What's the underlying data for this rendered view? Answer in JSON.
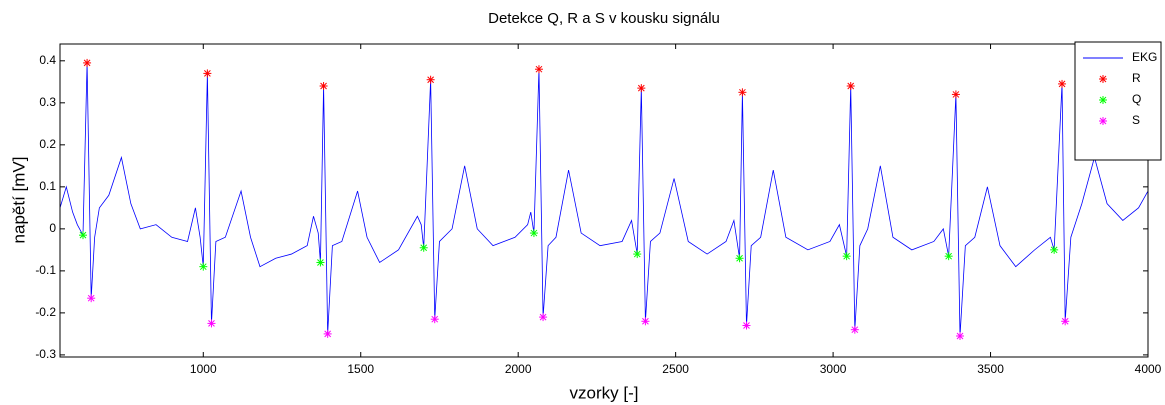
{
  "chart_data": {
    "type": "line",
    "title": "Detekce Q, R a S v kousku signálu",
    "x_label": "vzorky [-]",
    "y_label": "napětí [mV]",
    "xlim": [
      545,
      4000
    ],
    "ylim": [
      -0.305,
      0.44
    ],
    "xticks": [
      1000,
      1500,
      2000,
      2500,
      3000,
      3500,
      4000
    ],
    "yticks": [
      -0.3,
      -0.2,
      -0.1,
      0,
      0.1,
      0.2,
      0.3,
      0.4
    ],
    "grid": false,
    "legend": "northeast",
    "series": [
      {
        "name": "EKG",
        "color": "#0000ff",
        "marker": "none",
        "x": [
          545,
          565,
          585,
          600,
          618,
          631,
          644,
          655,
          670,
          700,
          740,
          770,
          800,
          850,
          900,
          950,
          975,
          990,
          1000,
          1013,
          1026,
          1040,
          1070,
          1120,
          1150,
          1180,
          1230,
          1280,
          1330,
          1350,
          1365,
          1372,
          1382,
          1395,
          1410,
          1440,
          1490,
          1520,
          1560,
          1620,
          1680,
          1692,
          1700,
          1722,
          1735,
          1750,
          1790,
          1830,
          1870,
          1920,
          1990,
          2030,
          2040,
          2050,
          2066,
          2079,
          2095,
          2120,
          2160,
          2200,
          2260,
          2330,
          2360,
          2378,
          2391,
          2404,
          2420,
          2450,
          2495,
          2540,
          2600,
          2660,
          2685,
          2703,
          2712,
          2725,
          2740,
          2770,
          2810,
          2850,
          2920,
          2990,
          3020,
          3043,
          3056,
          3069,
          3085,
          3110,
          3150,
          3190,
          3250,
          3320,
          3350,
          3367,
          3390,
          3403,
          3420,
          3450,
          3490,
          3530,
          3580,
          3640,
          3690,
          3702,
          3727,
          3737,
          3755,
          3790,
          3830,
          3870,
          3920,
          3970,
          4000
        ],
        "values": [
          0.05,
          0.1,
          0.04,
          0.01,
          -0.015,
          0.395,
          -0.165,
          -0.02,
          0.05,
          0.08,
          0.17,
          0.06,
          0.0,
          0.01,
          -0.02,
          -0.03,
          0.05,
          -0.02,
          -0.09,
          0.37,
          -0.225,
          -0.03,
          -0.02,
          0.09,
          -0.02,
          -0.09,
          -0.07,
          -0.06,
          -0.04,
          0.03,
          -0.01,
          -0.08,
          0.34,
          -0.25,
          -0.04,
          -0.03,
          0.09,
          -0.02,
          -0.08,
          -0.05,
          0.03,
          0.01,
          -0.045,
          0.355,
          -0.215,
          -0.03,
          0.0,
          0.15,
          0.0,
          -0.04,
          -0.02,
          0.01,
          0.04,
          -0.01,
          0.38,
          -0.21,
          -0.04,
          -0.02,
          0.14,
          -0.01,
          -0.04,
          -0.03,
          0.02,
          -0.06,
          0.335,
          -0.22,
          -0.03,
          -0.01,
          0.12,
          -0.03,
          -0.06,
          -0.03,
          0.02,
          -0.07,
          0.325,
          -0.23,
          -0.04,
          -0.02,
          0.14,
          -0.02,
          -0.05,
          -0.03,
          0.01,
          -0.065,
          0.34,
          -0.24,
          -0.04,
          0.0,
          0.15,
          -0.02,
          -0.05,
          -0.03,
          0.0,
          -0.065,
          0.32,
          -0.255,
          -0.04,
          -0.02,
          0.1,
          -0.04,
          -0.09,
          -0.05,
          -0.02,
          -0.05,
          0.345,
          -0.22,
          -0.02,
          0.06,
          0.17,
          0.06,
          0.02,
          0.05,
          0.09
        ]
      },
      {
        "name": "R",
        "color": "#ff0000",
        "marker": "asterisk",
        "x": [
          631,
          1013,
          1382,
          1722,
          2066,
          2391,
          2712,
          3056,
          3390,
          3727
        ],
        "values": [
          0.395,
          0.37,
          0.34,
          0.355,
          0.38,
          0.335,
          0.325,
          0.34,
          0.32,
          0.345
        ]
      },
      {
        "name": "Q",
        "color": "#00ff00",
        "marker": "asterisk",
        "x": [
          618,
          1000,
          1372,
          1700,
          2050,
          2378,
          2703,
          3043,
          3367,
          3702
        ],
        "values": [
          -0.015,
          -0.09,
          -0.08,
          -0.045,
          -0.01,
          -0.06,
          -0.07,
          -0.065,
          -0.065,
          -0.05
        ]
      },
      {
        "name": "S",
        "color": "#ff00ff",
        "marker": "asterisk",
        "x": [
          644,
          1026,
          1395,
          1735,
          2079,
          2404,
          2725,
          3069,
          3403,
          3737
        ],
        "values": [
          -0.165,
          -0.225,
          -0.25,
          -0.215,
          -0.21,
          -0.22,
          -0.23,
          -0.24,
          -0.255,
          -0.22
        ]
      }
    ]
  }
}
